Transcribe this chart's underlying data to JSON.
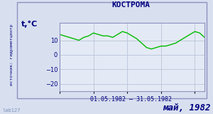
{
  "title": "КОСТРОМА",
  "ylabel": "t,°C",
  "xlabel": "01.05.1982 – 31.05.1982",
  "footer_left": "lab127",
  "footer_right": "май, 1982",
  "sidebar_text": "источник: гидрометцентр",
  "ylim": [
    -25,
    22
  ],
  "yticks": [
    -20,
    -10,
    0,
    10
  ],
  "bg_color": "#d8e0f0",
  "plot_bg_color": "#e4eaf5",
  "line_color": "#00bb00",
  "grid_color": "#b8c4d8",
  "title_color": "#000080",
  "label_color": "#000080",
  "tick_color": "#000080",
  "border_color": "#9090c0",
  "temperatures": [
    14,
    13,
    12,
    11,
    10,
    12,
    13,
    15,
    14,
    13,
    13,
    12,
    14,
    16,
    15,
    13,
    11,
    8,
    5,
    4,
    5,
    6,
    6,
    7,
    8,
    10,
    12,
    14,
    16,
    15,
    12
  ]
}
